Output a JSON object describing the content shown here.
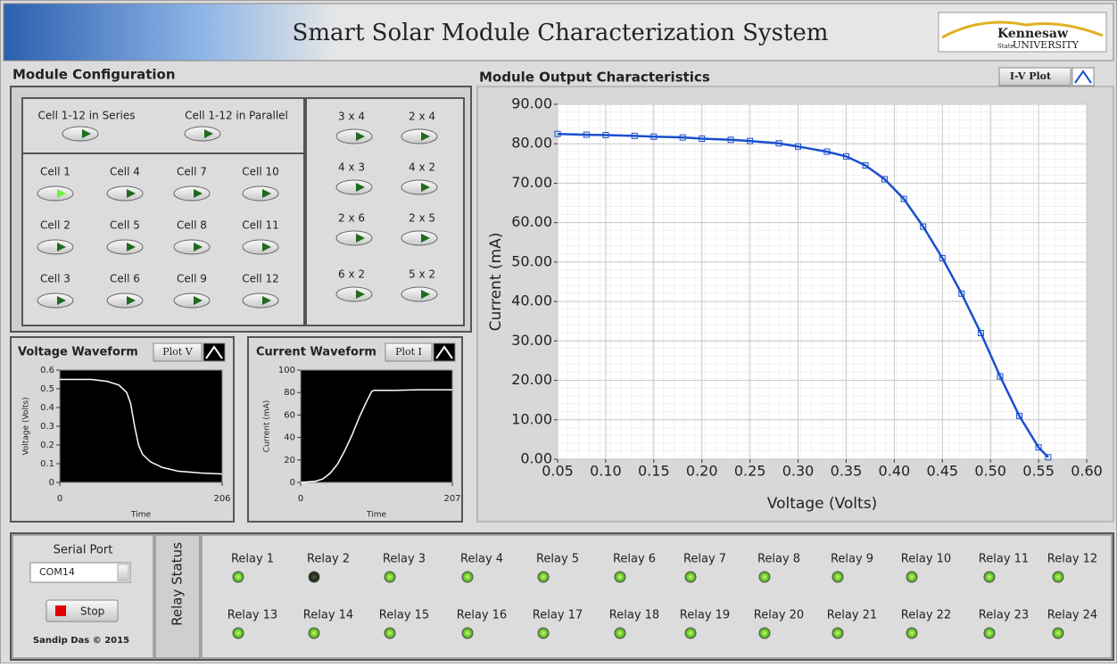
{
  "header": {
    "title": "Smart Solar Module Characterization System",
    "logo": [
      "Kennesaw",
      "State",
      "UNIVERSITY"
    ]
  },
  "module_configuration": {
    "title": "Module Configuration",
    "switches": [
      {
        "label": "Cell 1-12 in Series",
        "on": false
      },
      {
        "label": "Cell 1-12 in Parallel",
        "on": false
      }
    ],
    "cells": [
      {
        "label": "Cell 1",
        "on": true
      },
      {
        "label": "Cell 2",
        "on": false
      },
      {
        "label": "Cell 3",
        "on": false
      },
      {
        "label": "Cell 4",
        "on": false
      },
      {
        "label": "Cell 5",
        "on": false
      },
      {
        "label": "Cell 6",
        "on": false
      },
      {
        "label": "Cell 7",
        "on": false
      },
      {
        "label": "Cell 8",
        "on": false
      },
      {
        "label": "Cell 9",
        "on": false
      },
      {
        "label": "Cell 10",
        "on": false
      },
      {
        "label": "Cell 11",
        "on": false
      },
      {
        "label": "Cell 12",
        "on": false
      }
    ],
    "arrangements": [
      {
        "label": "3 x 4",
        "on": false
      },
      {
        "label": "2 x 4",
        "on": false
      },
      {
        "label": "4 x 3",
        "on": false
      },
      {
        "label": "4 x 2",
        "on": false
      },
      {
        "label": "2 x 6",
        "on": false
      },
      {
        "label": "2 x 5",
        "on": false
      },
      {
        "label": "6 x 2",
        "on": false
      },
      {
        "label": "5 x 2",
        "on": false
      }
    ]
  },
  "chart_data": [
    {
      "type": "line",
      "title": "Module Output Characteristics",
      "button": "I-V Plot",
      "xlabel": "Voltage (Volts)",
      "ylabel": "Current (mA)",
      "grid": true,
      "markers": true,
      "color": "#1a4fd0",
      "x": [
        0.05,
        0.08,
        0.1,
        0.13,
        0.15,
        0.18,
        0.2,
        0.23,
        0.25,
        0.28,
        0.3,
        0.33,
        0.35,
        0.37,
        0.39,
        0.41,
        0.43,
        0.45,
        0.47,
        0.49,
        0.51,
        0.53,
        0.55,
        0.56
      ],
      "series": [
        {
          "name": "I-V",
          "color": "#1a4fd0",
          "values": [
            82.5,
            82.3,
            82.2,
            82.0,
            81.8,
            81.6,
            81.3,
            81.0,
            80.7,
            80.1,
            79.3,
            78.0,
            76.8,
            74.5,
            71.0,
            66.0,
            59.0,
            51.0,
            42.0,
            32.0,
            21.0,
            11.0,
            3.0,
            0.5
          ]
        }
      ],
      "xlim": [
        0.05,
        0.6
      ],
      "xticks": [
        0.05,
        {
          "value": 0.1,
          "label": "0.10"
        },
        0.15,
        {
          "value": 0.2,
          "label": "0.20"
        },
        0.25,
        {
          "value": 0.3,
          "label": "0.30"
        },
        0.35,
        {
          "value": 0.4,
          "label": "0.40"
        },
        0.45,
        {
          "value": 0.5,
          "label": "0.50"
        },
        0.55,
        {
          "value": 0.6,
          "label": "0.60"
        }
      ],
      "ylim": [
        0,
        90
      ],
      "yticks": [
        {
          "value": 0,
          "label": "0.00"
        },
        {
          "value": 10,
          "label": "10.00"
        },
        {
          "value": 20,
          "label": "20.00"
        },
        {
          "value": 30,
          "label": "30.00"
        },
        {
          "value": 40,
          "label": "40.00"
        },
        {
          "value": 50,
          "label": "50.00"
        },
        {
          "value": 60,
          "label": "60.00"
        },
        {
          "value": 70,
          "label": "70.00"
        },
        {
          "value": 80,
          "label": "80.00"
        },
        {
          "value": 90,
          "label": "90.00"
        }
      ]
    },
    {
      "type": "line",
      "title": "Voltage Waveform",
      "button": "Plot V",
      "xlabel": "Time",
      "ylabel": "Voltage (Volts)",
      "grid": false,
      "markers": false,
      "x": [
        0,
        40,
        60,
        75,
        85,
        90,
        95,
        100,
        105,
        115,
        130,
        150,
        180,
        206
      ],
      "series": [
        {
          "name": "Voltage",
          "color": "#ffffff",
          "values": [
            0.55,
            0.55,
            0.54,
            0.52,
            0.48,
            0.42,
            0.3,
            0.2,
            0.15,
            0.11,
            0.08,
            0.06,
            0.05,
            0.045
          ]
        }
      ],
      "xlim": [
        0,
        206
      ],
      "xticks": [
        0,
        206
      ],
      "ylim": [
        0,
        0.6
      ],
      "yticks": [
        0,
        0.1,
        0.2,
        0.3,
        0.4,
        0.5,
        0.6
      ]
    },
    {
      "type": "line",
      "title": "Current Waveform",
      "button": "Plot I",
      "xlabel": "Time",
      "ylabel": "Current (mA)",
      "grid": false,
      "markers": false,
      "x": [
        0,
        20,
        30,
        40,
        50,
        60,
        70,
        80,
        90,
        97,
        100,
        130,
        160,
        207
      ],
      "series": [
        {
          "name": "Current",
          "color": "#ffffff",
          "values": [
            0,
            1,
            3,
            8,
            16,
            28,
            42,
            58,
            72,
            81,
            82,
            82,
            82.5,
            82.5
          ]
        }
      ],
      "xlim": [
        0,
        207
      ],
      "xticks": [
        0,
        207
      ],
      "ylim": [
        0,
        100
      ],
      "yticks": [
        0,
        20,
        40,
        60,
        80,
        100
      ]
    }
  ],
  "serial_port": {
    "label": "Serial Port",
    "value": "COM14",
    "stop": "Stop",
    "credit": "Sandip Das © 2015"
  },
  "relay_status": {
    "label": "Relay Status",
    "relays": [
      {
        "name": "Relay 1",
        "on": true
      },
      {
        "name": "Relay 2",
        "on": false
      },
      {
        "name": "Relay 3",
        "on": true
      },
      {
        "name": "Relay 4",
        "on": true
      },
      {
        "name": "Relay 5",
        "on": true
      },
      {
        "name": "Relay 6",
        "on": true
      },
      {
        "name": "Relay 7",
        "on": true
      },
      {
        "name": "Relay 8",
        "on": true
      },
      {
        "name": "Relay 9",
        "on": true
      },
      {
        "name": "Relay 10",
        "on": true
      },
      {
        "name": "Relay 11",
        "on": true
      },
      {
        "name": "Relay 12",
        "on": true
      },
      {
        "name": "Relay 13",
        "on": true
      },
      {
        "name": "Relay 14",
        "on": true
      },
      {
        "name": "Relay 15",
        "on": true
      },
      {
        "name": "Relay 16",
        "on": true
      },
      {
        "name": "Relay 17",
        "on": true
      },
      {
        "name": "Relay 18",
        "on": true
      },
      {
        "name": "Relay 19",
        "on": true
      },
      {
        "name": "Relay 20",
        "on": true
      },
      {
        "name": "Relay 21",
        "on": true
      },
      {
        "name": "Relay 22",
        "on": true
      },
      {
        "name": "Relay 23",
        "on": true
      },
      {
        "name": "Relay 24",
        "on": true
      }
    ]
  }
}
